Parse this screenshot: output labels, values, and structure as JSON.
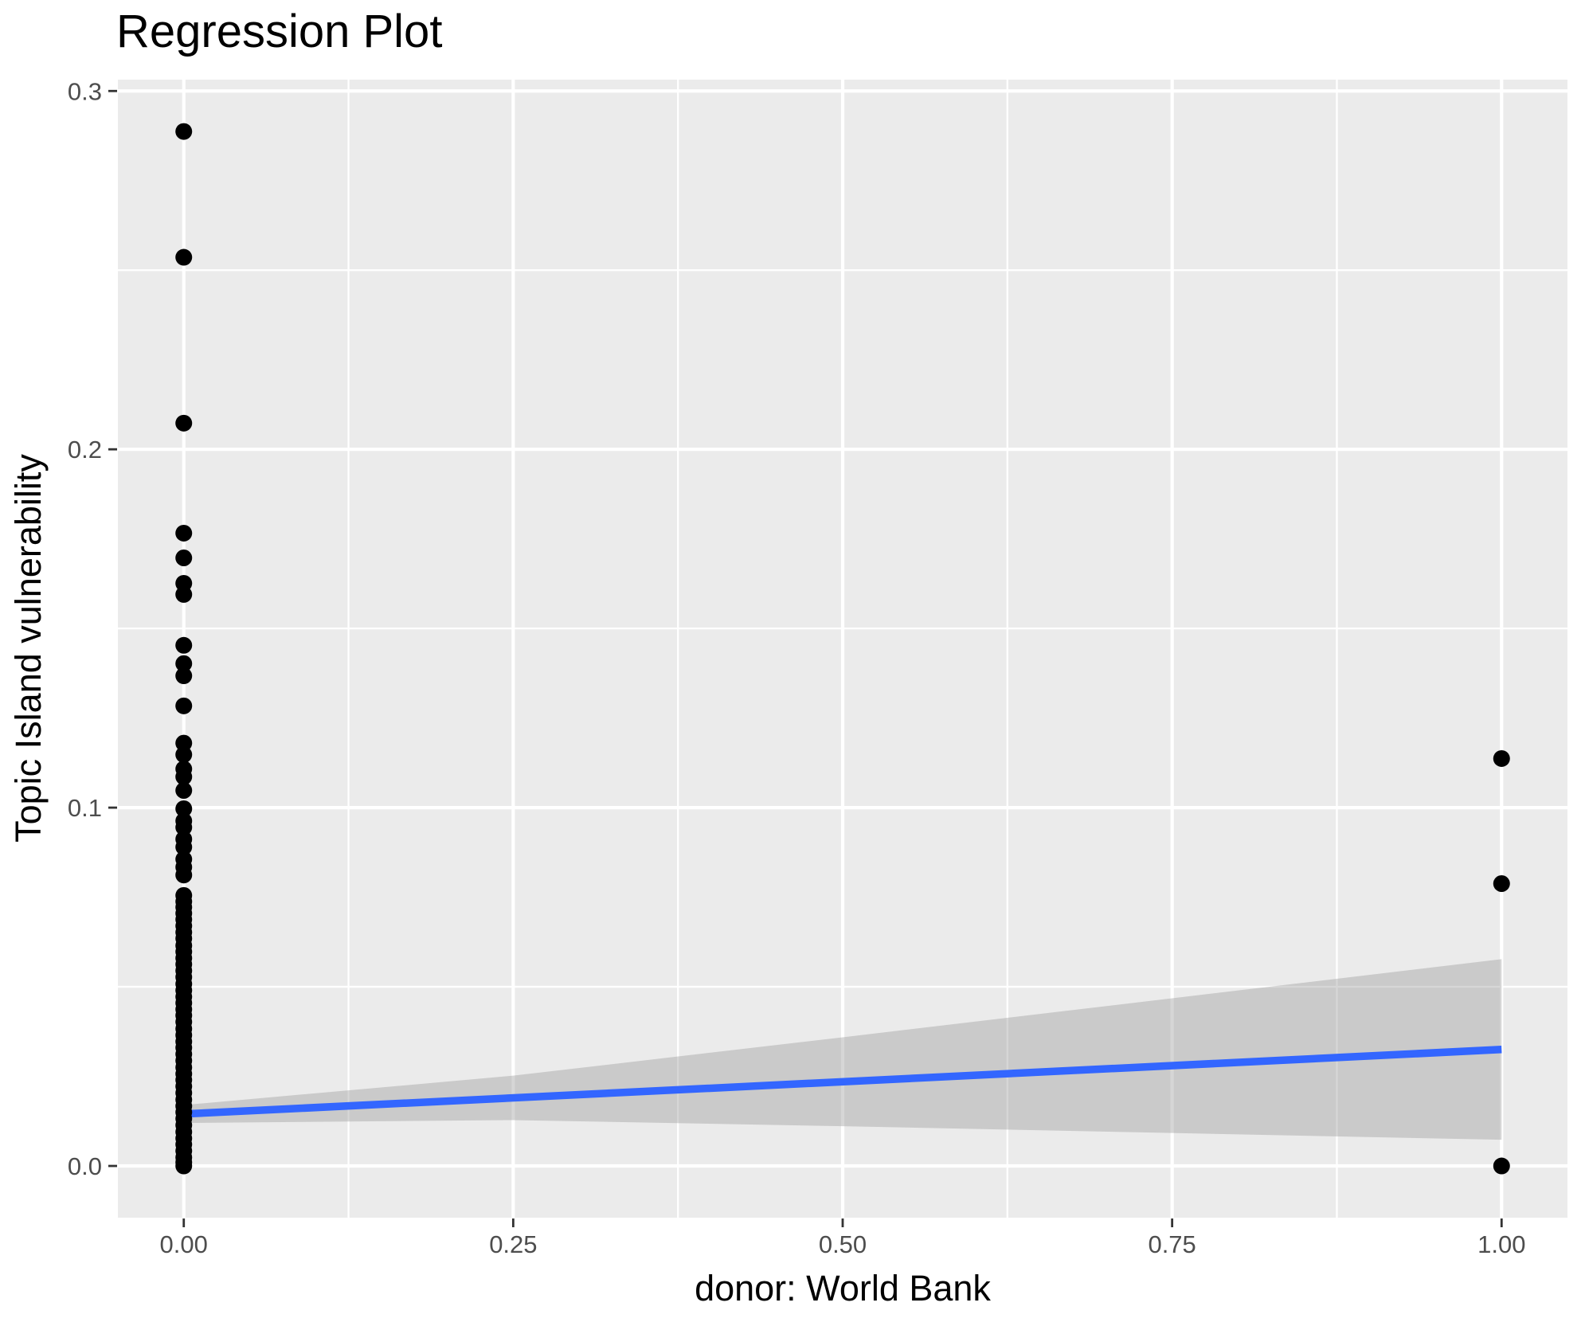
{
  "chart_data": {
    "type": "scatter",
    "title": "Regression Plot",
    "xlabel": "donor: World Bank",
    "ylabel": "Topic Island vulnerability",
    "xlim": [
      -0.05,
      1.05
    ],
    "ylim": [
      -0.01444,
      0.30317
    ],
    "grid": "white major and minor gridlines on gray panel",
    "legend": "none",
    "x_ticks": {
      "values": [
        0,
        0.25,
        0.5,
        0.75,
        1.0
      ],
      "labels": [
        "0.00",
        "0.25",
        "0.50",
        "0.75",
        "1.00"
      ]
    },
    "y_ticks": {
      "values": [
        0,
        0.1,
        0.2,
        0.3
      ],
      "labels": [
        "0.0",
        "0.1",
        "0.2",
        "0.3"
      ]
    },
    "x_minor": [
      0.125,
      0.375,
      0.625,
      0.875
    ],
    "y_minor": [
      0.05,
      0.15,
      0.25
    ],
    "series": [
      {
        "name": "observations at donor=0",
        "x": 0,
        "y": [
          0.2887,
          0.2536,
          0.2073,
          0.1766,
          0.1697,
          0.1626,
          0.1595,
          0.1453,
          0.1402,
          0.1368,
          0.1284,
          0.118,
          0.1148,
          0.1108,
          0.1086,
          0.1048,
          0.0997,
          0.0963,
          0.0945,
          0.0912,
          0.089,
          0.0856,
          0.0834,
          0.0812,
          0.0755,
          0.0738,
          0.0722,
          0.0705,
          0.0688,
          0.067,
          0.0652,
          0.0635,
          0.0615,
          0.0598,
          0.058,
          0.0563,
          0.0545,
          0.0527,
          0.0508,
          0.049,
          0.0472,
          0.0455,
          0.0437,
          0.042,
          0.0402,
          0.0383,
          0.0365,
          0.0347,
          0.033,
          0.0312,
          0.0294,
          0.0275,
          0.0257,
          0.024,
          0.0222,
          0.0204,
          0.0185,
          0.0167,
          0.015,
          0.0132,
          0.0114,
          0.0095,
          0.0077,
          0.006,
          0.0042,
          0.0024,
          0.001,
          0.0
        ]
      },
      {
        "name": "observations at donor=1",
        "x": 1,
        "y": [
          0.1137,
          0.0788,
          0.0
        ]
      }
    ],
    "regression_line": {
      "x": [
        0,
        1
      ],
      "y": [
        0.0145,
        0.0325
      ]
    },
    "confidence_band": {
      "x": [
        0,
        0.25,
        0.5,
        0.75,
        1.0
      ],
      "upper": [
        0.017,
        0.0252,
        0.0359,
        0.0468,
        0.0577
      ],
      "lower": [
        0.012,
        0.0128,
        0.0111,
        0.0092,
        0.0073
      ]
    },
    "colors": {
      "background": "#FFFFFF",
      "panel": "#EBEBEB",
      "grid": "#FFFFFF",
      "point": "#000000",
      "regression_line": "#3366FF",
      "confidence_band": "rgba(153,153,153,0.4)",
      "tick_text": "#4D4D4D",
      "tick_mark": "#333333",
      "title_text": "#000000"
    }
  }
}
